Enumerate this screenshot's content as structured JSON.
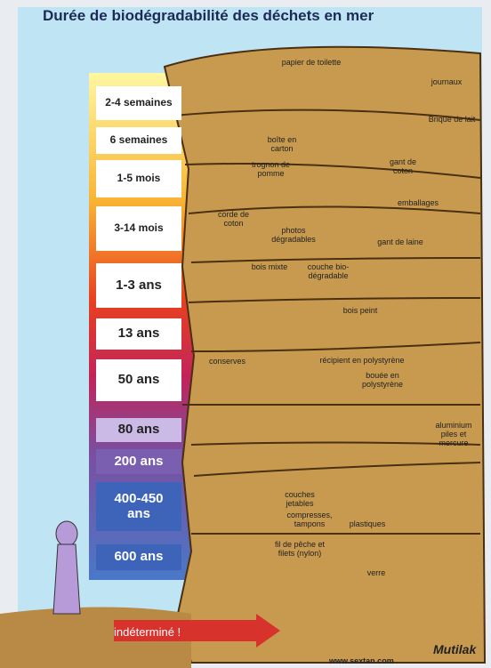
{
  "header": {
    "title": "Durée de biodégradabilité des déchets en mer"
  },
  "durations": [
    "2-4 semaines",
    "6 semaines",
    "1-5 mois",
    "3-14 mois",
    "1-3 ans",
    "13 ans",
    "50 ans",
    "80 ans",
    "200 ans",
    "400-450 ans",
    "600 ans"
  ],
  "items": [
    "papier de toilette",
    "journaux",
    "boîte en carton",
    "trognon de pomme",
    "Brique de lait",
    "gant de coton",
    "corde de coton",
    "photos dégradables",
    "emballages",
    "gant de laine",
    "bois mixte",
    "couche bio-dégradable",
    "bois peint",
    "conserves",
    "récipient en polystyrène",
    "bouée en polystyrène",
    "aluminium piles et mercure",
    "couches jetables",
    "compresses, tampons",
    "plastiques",
    "fil de pêche et filets (nylon)",
    "verre"
  ],
  "footer": {
    "arrow": "indéterminé !",
    "url": "www.sextan.com",
    "brand": "Mutilak"
  }
}
